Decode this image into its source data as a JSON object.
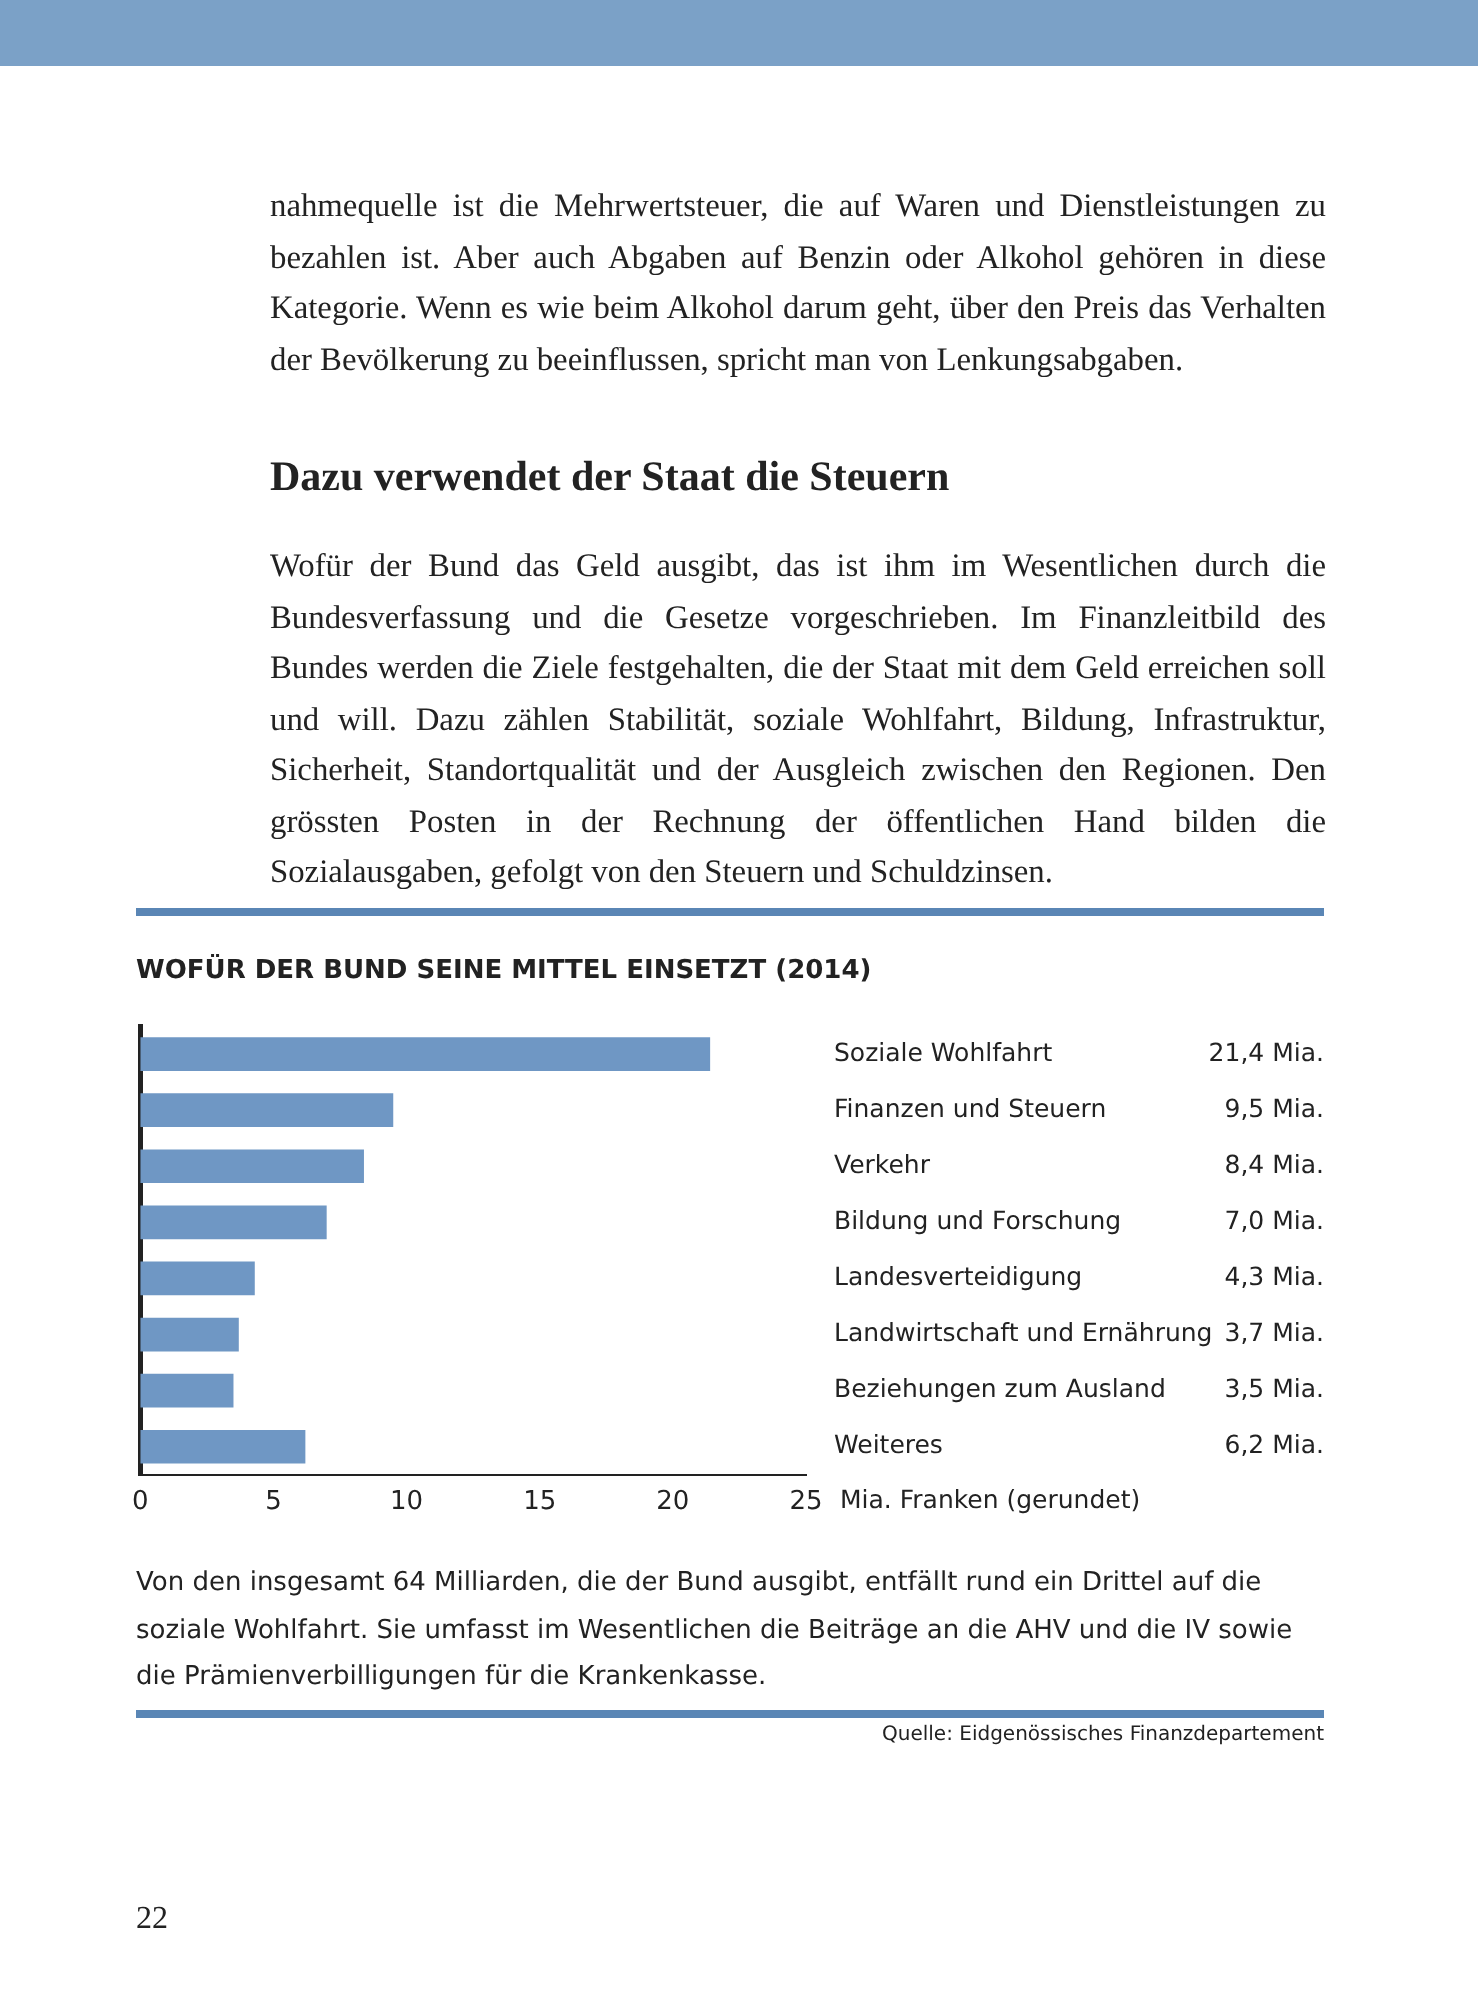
{
  "chart_data": {
    "type": "bar",
    "orientation": "horizontal",
    "title": "WOFÜR DER BUND SEINE MITTEL EINSETZT (2014)",
    "categories": [
      "Soziale Wohlfahrt",
      "Finanzen und Steuern",
      "Verkehr",
      "Bildung und Forschung",
      "Landesverteidigung",
      "Landwirtschaft und Ernährung",
      "Beziehungen zum Ausland",
      "Weiteres"
    ],
    "values": [
      21.4,
      9.5,
      8.4,
      7.0,
      4.3,
      3.7,
      3.5,
      6.2
    ],
    "value_labels": [
      "21,4 Mia.",
      "9,5 Mia.",
      "8,4 Mia.",
      "7,0 Mia.",
      "4,3 Mia.",
      "3,7 Mia.",
      "3,5 Mia.",
      "6,2 Mia."
    ],
    "color": "#6f97c4",
    "xlabel": "Mia. Franken (gerundet)",
    "xlim": [
      0,
      25
    ],
    "xticks": [
      0,
      5,
      10,
      15,
      20,
      25
    ],
    "legend": false,
    "annotations": [
      "nahmequelle ist die Mehrwertsteuer, die auf Waren und Dienstleistungen zu bezahlen ist. Aber auch Abgaben auf Benzin oder Alkohol gehören in diese Kategorie. Wenn es wie beim Alkohol darum geht, über den Preis das Verhalten der Bevölkerung zu beeinflussen, spricht man von Lenkungsabgaben.",
      "Dazu verwendet der Staat die Steuern",
      "Wofür der Bund das Geld ausgibt, das ist ihm im Wesentlichen durch die Bundesverfassung und die Gesetze vorgeschrieben. Im Finanzleitbild des Bundes werden die Ziele festgehalten, die der Staat mit dem Geld erreichen soll und will. Dazu zählen Stabilität, soziale Wohlfahrt, Bildung, Infrastruktur, Sicherheit, Standortqualität und der Ausgleich zwischen den Regionen. Den grössten Posten in der Rechnung der öffentlichen Hand bilden die Sozialausgaben, gefolgt von den Steuern und Schuldzinsen.",
      "Von den insgesamt 64 Milliarden, die der Bund ausgibt, entfällt rund ein Drittel auf die soziale Wohlfahrt. Sie umfasst im Wesentlichen die Beiträge an die AHV und die IV sowie die Prämienverbilligungen für die Krankenkasse.",
      "Quelle: Eidgenössisches Finanzdepartement",
      "22"
    ]
  }
}
